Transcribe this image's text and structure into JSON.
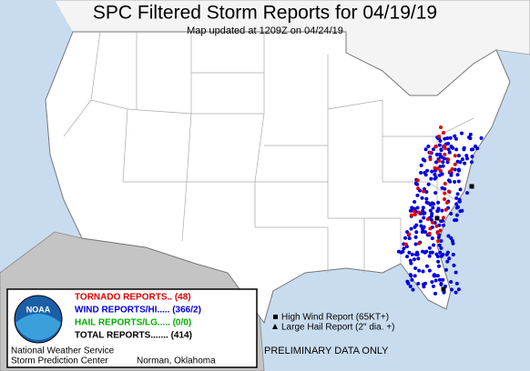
{
  "header": {
    "title": "SPC Filtered Storm Reports for 04/19/19",
    "subtitle": "Map updated at 1209Z on 04/24/19"
  },
  "legend": {
    "tornado": "TORNADO REPORTS.. (48)",
    "wind": "WIND REPORTS/HI..... (366/2)",
    "hail": "HAIL REPORTS/LG..... (0/0)",
    "total": "TOTAL REPORTS....... (414)",
    "logo": "NOAA",
    "agency": "National Weather Service",
    "center": "Storm Prediction Center",
    "location": "Norman, Oklahoma"
  },
  "key": {
    "high_wind": "High Wind Report (65KT+)",
    "large_hail": "Large Hail Report (2\" dia. +)"
  },
  "note": "PRELIMINARY DATA ONLY"
}
